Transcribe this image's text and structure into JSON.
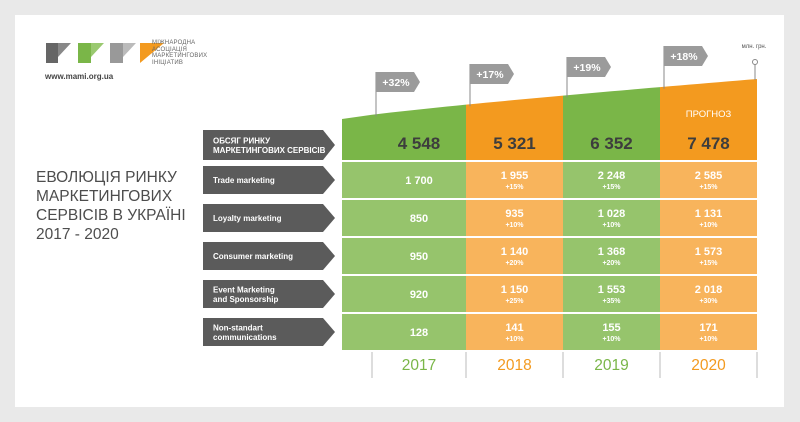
{
  "brand": {
    "org_name": "МІЖНАРОДНА АСОЦІАЦІЯ МАРКЕТИНГОВИХ ІНІЦІАТИВ",
    "url": "www.mami.org.ua"
  },
  "title": "ЕВОЛЮЦІЯ РИНКУ МАРКЕТИНГОВИХ СЕРВІСІВ В УКРАЇНІ 2017 - 2020",
  "unit": "млн. грн.",
  "forecast_label": "ПРОГНОЗ",
  "colors": {
    "green": "#7ab648",
    "green_light": "#96c46c",
    "orange": "#f39a1f",
    "orange_light": "#f8b45c",
    "dark": "#5b5b5b",
    "growth_tag": "#9b9b9b"
  },
  "chart_data": {
    "type": "table",
    "title": "ЕВОЛЮЦІЯ РИНКУ МАРКЕТИНГОВИХ СЕРВІСІВ В УКРАЇНІ 2017 - 2020",
    "unit": "млн. грн.",
    "categories": [
      "2017",
      "2018",
      "2019",
      "2020"
    ],
    "total_growth": [
      "+32%",
      "+17%",
      "+19%",
      "+18%"
    ],
    "total": {
      "name": "ОБСЯГ РИНКУ МАРКЕТИНГОВИХ СЕРВІСІВ",
      "values": [
        4548,
        5321,
        6352,
        7478
      ],
      "labels": [
        "4 548",
        "5 321",
        "6 352",
        "7 478"
      ]
    },
    "series": [
      {
        "name": "Trade marketing",
        "values": [
          1700,
          1955,
          2248,
          2585
        ],
        "labels": [
          "1 700",
          "1 955",
          "2 248",
          "2 585"
        ],
        "growth": [
          "",
          "+15%",
          "+15%",
          "+15%"
        ]
      },
      {
        "name": "Loyalty marketing",
        "values": [
          850,
          935,
          1028,
          1131
        ],
        "labels": [
          "850",
          "935",
          "1 028",
          "1 131"
        ],
        "growth": [
          "",
          "+10%",
          "+10%",
          "+10%"
        ]
      },
      {
        "name": "Consumer marketing",
        "values": [
          950,
          1140,
          1368,
          1573
        ],
        "labels": [
          "950",
          "1 140",
          "1 368",
          "1 573"
        ],
        "growth": [
          "",
          "+20%",
          "+20%",
          "+15%"
        ]
      },
      {
        "name": "Event Marketing and Sponsorship",
        "values": [
          920,
          1150,
          1553,
          2018
        ],
        "labels": [
          "920",
          "1 150",
          "1 553",
          "2 018"
        ],
        "growth": [
          "",
          "+25%",
          "+35%",
          "+30%"
        ]
      },
      {
        "name": "Non-standart communications",
        "values": [
          128,
          141,
          155,
          171
        ],
        "labels": [
          "128",
          "141",
          "155",
          "171"
        ],
        "growth": [
          "",
          "+10%",
          "+10%",
          "+10%"
        ]
      }
    ]
  }
}
